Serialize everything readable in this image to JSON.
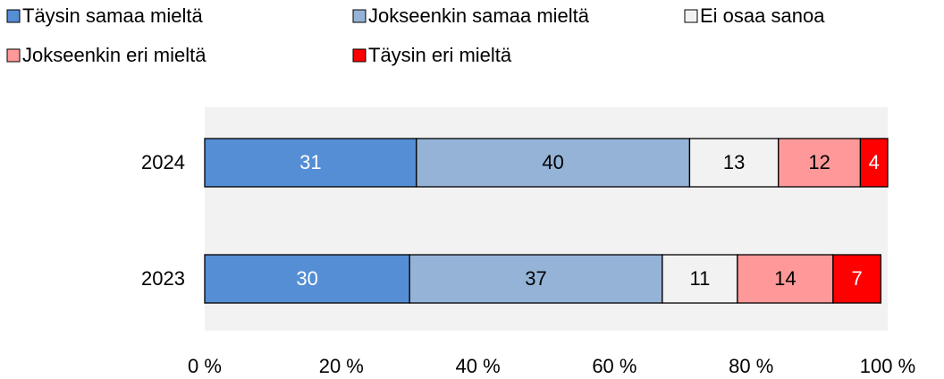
{
  "chart_data": {
    "type": "stacked-bar-horizontal",
    "categories": [
      "2024",
      "2023"
    ],
    "series": [
      {
        "name": "Täysin samaa mieltä",
        "color": "#558ed5",
        "values": [
          31,
          30
        ]
      },
      {
        "name": "Jokseenkin samaa mieltä",
        "color": "#95b3d7",
        "values": [
          40,
          37
        ]
      },
      {
        "name": "Ei osaa sanoa",
        "color": "#f2f2f2",
        "values": [
          13,
          11
        ]
      },
      {
        "name": "Jokseenkin eri mieltä",
        "color": "#ff9999",
        "values": [
          12,
          14
        ]
      },
      {
        "name": "Täysin eri mieltä",
        "color": "#ff0000",
        "values": [
          4,
          7
        ]
      }
    ],
    "xlim": [
      0,
      100
    ],
    "xticks": [
      {
        "value": 0,
        "label": "0 %"
      },
      {
        "value": 20,
        "label": "20 %"
      },
      {
        "value": 40,
        "label": "40 %"
      },
      {
        "value": 60,
        "label": "60 %"
      },
      {
        "value": 80,
        "label": "80 %"
      },
      {
        "value": 100,
        "label": "100 %"
      }
    ],
    "legend": "top"
  }
}
